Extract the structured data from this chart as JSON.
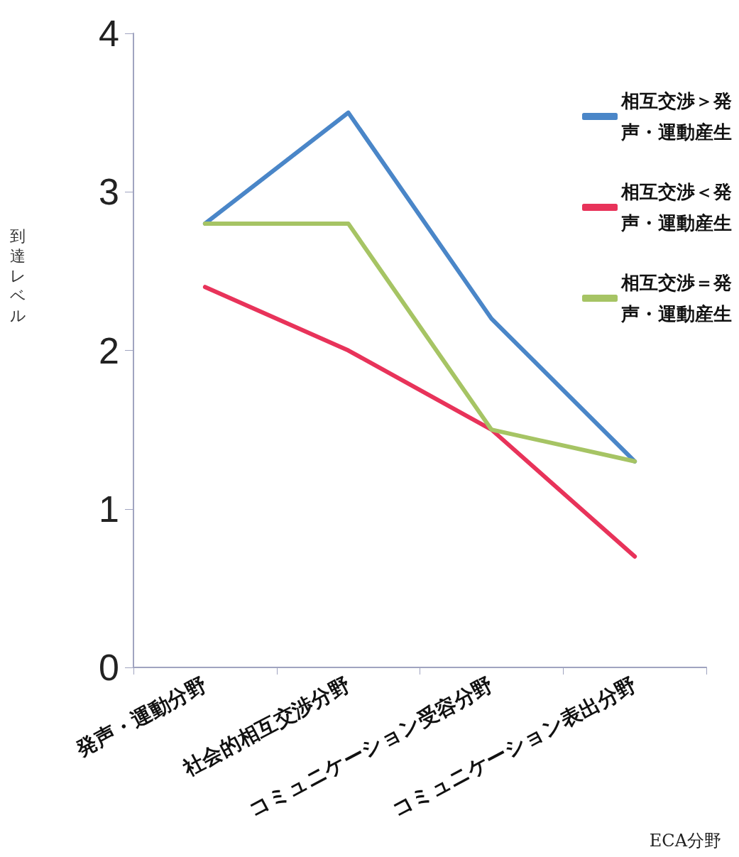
{
  "chart_data": {
    "type": "line",
    "xlabel": "ECA分野",
    "ylabel": "到達レベル",
    "categories": [
      "発声・運動分野",
      "社会的相互交渉分野",
      "コミュニケーション受容分野",
      "コミュニケーション表出分野"
    ],
    "series": [
      {
        "name": "相互交渉＞発声・運動産生",
        "color": "#4a86c8",
        "values": [
          2.8,
          3.5,
          2.2,
          1.3
        ]
      },
      {
        "name": "相互交渉＜発声・運動産生",
        "color": "#e8335a",
        "values": [
          2.4,
          2.0,
          1.5,
          0.7
        ]
      },
      {
        "name": "相互交渉＝発声・運動産生",
        "color": "#a6c464",
        "values": [
          2.8,
          2.8,
          1.5,
          1.3
        ]
      }
    ],
    "ylim": [
      0,
      4
    ],
    "yticks": [
      0,
      1,
      2,
      3,
      4
    ],
    "grid": false,
    "legend": "top right",
    "marker": "none",
    "line_style": "solid"
  }
}
